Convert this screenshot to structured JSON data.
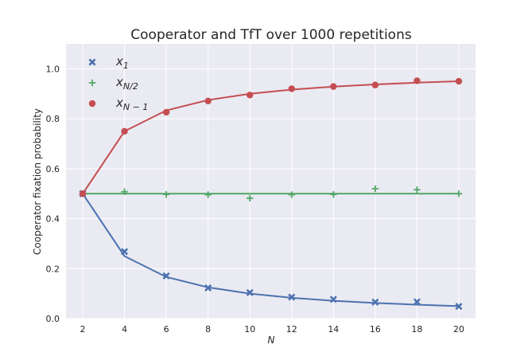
{
  "chart_data": {
    "type": "line",
    "title": "Cooperator and TfT over 1000 repetitions",
    "xlabel": "N",
    "ylabel": "Cooperator fixation probability",
    "x": [
      2,
      4,
      6,
      8,
      10,
      12,
      14,
      16,
      18,
      20
    ],
    "xlim": [
      1.2,
      20.8
    ],
    "ylim": [
      0.0,
      1.1
    ],
    "xticks": [
      "2",
      "4",
      "6",
      "8",
      "10",
      "12",
      "14",
      "16",
      "18",
      "20"
    ],
    "yticks": [
      "0.0",
      "0.2",
      "0.4",
      "0.6",
      "0.8",
      "1.0"
    ],
    "grid": true,
    "legend_position": "top-left",
    "series": [
      {
        "name": "x1",
        "legend_base": "x",
        "legend_sub": "1",
        "color": "#4c72b0",
        "marker": "x",
        "line": [
          0.5,
          0.25,
          0.1667,
          0.125,
          0.1,
          0.0833,
          0.0714,
          0.0625,
          0.0556,
          0.05
        ],
        "points": [
          0.5,
          0.268,
          0.171,
          0.123,
          0.104,
          0.086,
          0.077,
          0.066,
          0.067,
          0.049
        ]
      },
      {
        "name": "xN/2",
        "legend_base": "x",
        "legend_sub": "N/2",
        "color": "#55a868",
        "marker": "+",
        "line": [
          0.5,
          0.5,
          0.5,
          0.5,
          0.5,
          0.5,
          0.5,
          0.5,
          0.5,
          0.5
        ],
        "points": [
          0.5,
          0.508,
          0.497,
          0.496,
          0.482,
          0.496,
          0.497,
          0.52,
          0.516,
          0.5
        ]
      },
      {
        "name": "xN-1",
        "legend_base": "x",
        "legend_sub": "N − 1",
        "color": "#c44e52",
        "marker": "o",
        "line": [
          0.5,
          0.75,
          0.8333,
          0.875,
          0.9,
          0.9167,
          0.9286,
          0.9375,
          0.9444,
          0.95
        ],
        "points": [
          0.5,
          0.75,
          0.826,
          0.871,
          0.895,
          0.92,
          0.929,
          0.935,
          0.952,
          0.95
        ]
      }
    ]
  }
}
